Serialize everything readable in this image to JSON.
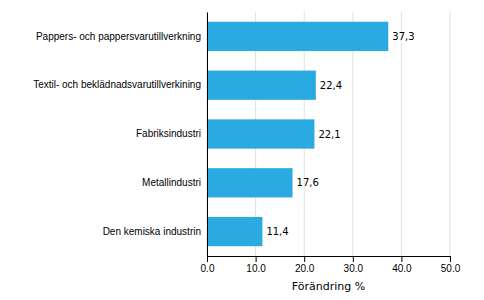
{
  "chart_data": {
    "type": "bar",
    "orientation": "horizontal",
    "xlabel": "Förändring %",
    "categories": [
      "Den kemiska industrin",
      "Metallindustri",
      "Fabriksindustri",
      "Textil- och beklädnadsvarutillverkining",
      "Pappers- och pappersvarutillverkning"
    ],
    "values": [
      11.4,
      17.6,
      22.1,
      22.4,
      37.3
    ],
    "value_labels": [
      "11,4",
      "17,6",
      "22,1",
      "22,4",
      "37,3"
    ],
    "color": "#29abe2",
    "xlim": [
      0,
      50
    ],
    "xticks": [
      {
        "value": 0,
        "label": "0.0"
      },
      {
        "value": 10,
        "label": "10.0"
      },
      {
        "value": 20,
        "label": "20.0"
      },
      {
        "value": 30,
        "label": "30.0"
      },
      {
        "value": 40,
        "label": "40.0"
      },
      {
        "value": 50,
        "label": "50.0"
      }
    ],
    "grid": true
  }
}
